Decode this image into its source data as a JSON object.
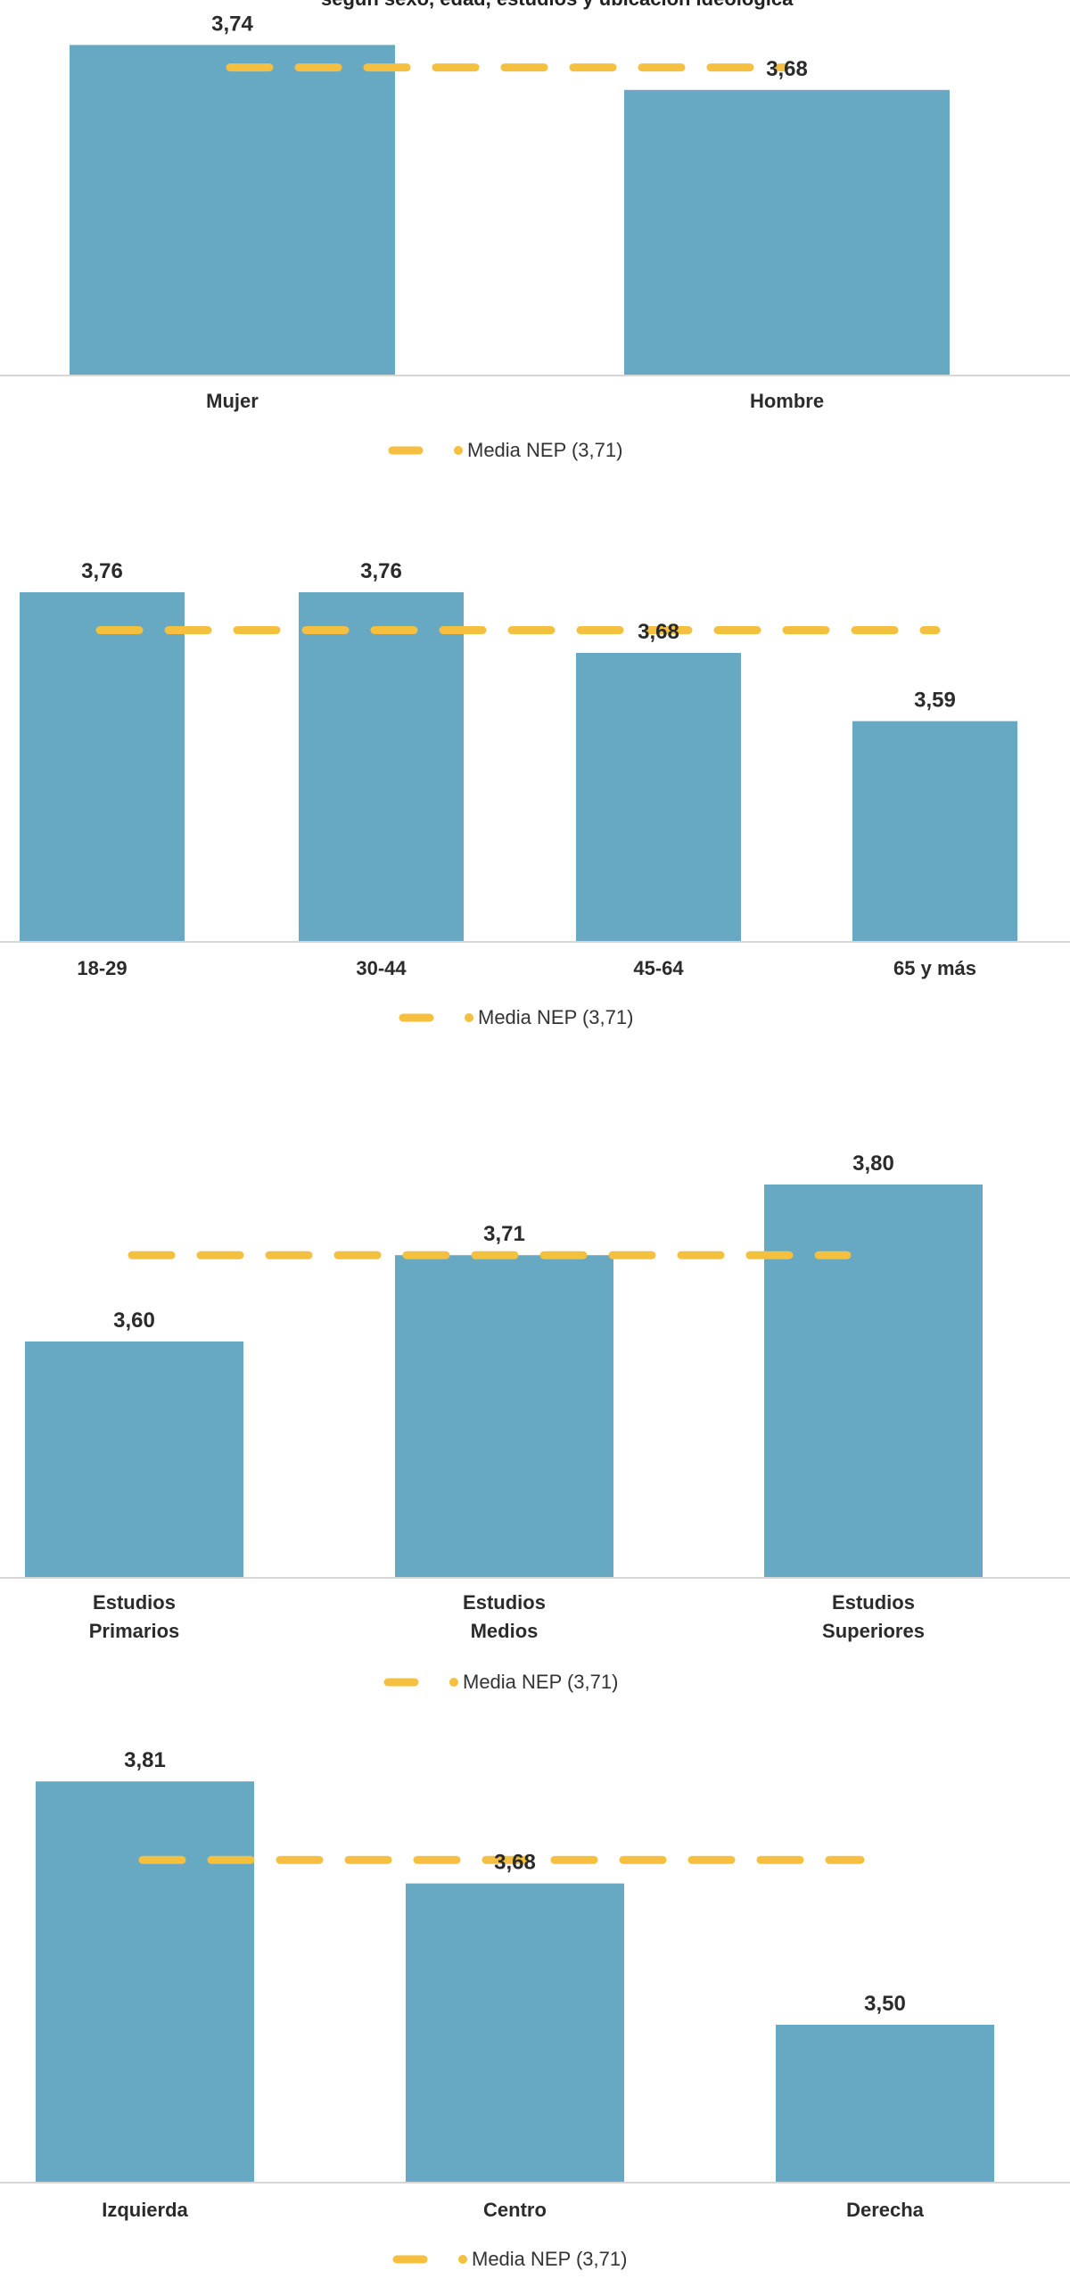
{
  "header_fragment": "según sexo, edad, estudios y ubicación ideológica",
  "chart_data": [
    {
      "type": "bar",
      "categories": [
        [
          "Mujer"
        ],
        [
          "Hombre"
        ]
      ],
      "values": [
        3.74,
        3.68
      ],
      "value_labels": [
        "3,74",
        "3,68"
      ],
      "reference_line": {
        "name": "Media NEP (3,71)",
        "value": 3.71
      },
      "colors": {
        "bar": "#67a9c3",
        "reference": "#f5bf3f"
      }
    },
    {
      "type": "bar",
      "categories": [
        [
          "18-29"
        ],
        [
          "30-44"
        ],
        [
          "45-64"
        ],
        [
          "65 y más"
        ]
      ],
      "values": [
        3.76,
        3.76,
        3.68,
        3.59
      ],
      "value_labels": [
        "3,76",
        "3,76",
        "3,68",
        "3,59"
      ],
      "reference_line": {
        "name": "Media NEP (3,71)",
        "value": 3.71
      },
      "colors": {
        "bar": "#67a9c3",
        "reference": "#f5bf3f"
      }
    },
    {
      "type": "bar",
      "categories": [
        [
          "Estudios",
          "Primarios"
        ],
        [
          "Estudios",
          "Medios"
        ],
        [
          "Estudios",
          "Superiores"
        ]
      ],
      "values": [
        3.6,
        3.71,
        3.8
      ],
      "value_labels": [
        "3,60",
        "3,71",
        "3,80"
      ],
      "reference_line": {
        "name": "Media NEP (3,71)",
        "value": 3.71
      },
      "colors": {
        "bar": "#67a9c3",
        "reference": "#f5bf3f"
      }
    },
    {
      "type": "bar",
      "categories": [
        [
          "Izquierda"
        ],
        [
          "Centro"
        ],
        [
          "Derecha"
        ]
      ],
      "values": [
        3.81,
        3.68,
        3.5
      ],
      "value_labels": [
        "3,81",
        "3,68",
        "3,50"
      ],
      "reference_line": {
        "name": "Media NEP (3,71)",
        "value": 3.71
      },
      "colors": {
        "bar": "#67a9c3",
        "reference": "#f5bf3f"
      }
    }
  ]
}
